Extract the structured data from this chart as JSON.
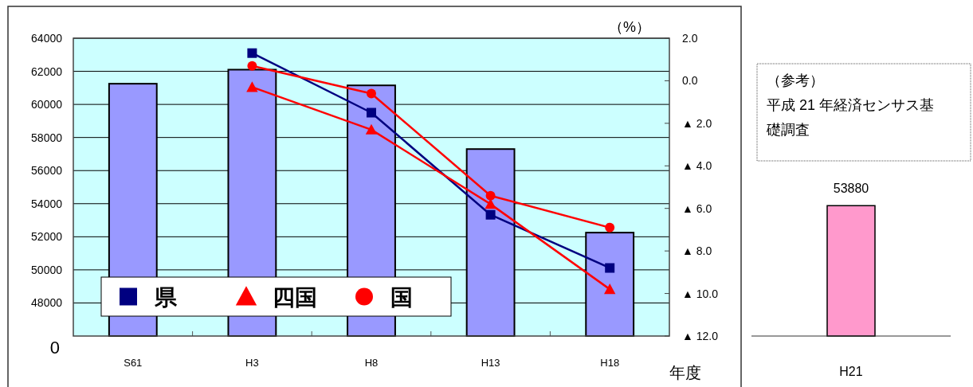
{
  "chart_data": [
    {
      "type": "bar",
      "categories": [
        "S61",
        "H3",
        "H8",
        "H13",
        "H18"
      ],
      "series": [
        {
          "type": "bar",
          "color": "#9999ff",
          "values": [
            61250,
            62100,
            61150,
            57300,
            52250
          ]
        },
        {
          "name": "県",
          "type": "line",
          "axis": "y2",
          "marker": "square",
          "color": "#000080",
          "values": [
            null,
            1.3,
            -1.5,
            -6.3,
            -8.8
          ]
        },
        {
          "name": "四国",
          "type": "line",
          "axis": "y2",
          "marker": "triangle",
          "color": "#ff0000",
          "values": [
            null,
            -0.3,
            -2.3,
            -5.8,
            -9.8
          ]
        },
        {
          "name": "国",
          "type": "line",
          "axis": "y2",
          "marker": "circle",
          "color": "#ff0000",
          "values": [
            null,
            0.7,
            -0.6,
            -5.4,
            -6.9
          ]
        }
      ],
      "ylim": [
        46000,
        64000
      ],
      "annotations": [
        "0"
      ],
      "yticks": [
        48000,
        50000,
        52000,
        54000,
        56000,
        58000,
        60000,
        62000,
        64000
      ],
      "y2lim": [
        -12,
        2
      ],
      "y2ticks": [
        {
          "value": -12,
          "label": "▲ 12.0"
        },
        {
          "value": -10,
          "label": "▲ 10.0"
        },
        {
          "value": -8,
          "label": "▲ 8.0"
        },
        {
          "value": -6,
          "label": "▲ 6.0"
        },
        {
          "value": -4,
          "label": "▲ 4.0"
        },
        {
          "value": -2,
          "label": "▲ 2.0"
        },
        {
          "value": 0,
          "label": "0.0"
        },
        {
          "value": 2,
          "label": "2.0"
        }
      ],
      "y2label": "（%）",
      "xlabel": "年度",
      "grid": "y",
      "legend": "bottom left"
    },
    {
      "type": "bar",
      "title": "（参考）",
      "subtitle": "平成 21 年経済センサス基礎調査",
      "categories": [
        "H21"
      ],
      "values": [
        53880
      ],
      "color": "#ff99cc",
      "data_labels": true,
      "ylim": [
        46000,
        64000
      ],
      "tick_labels": "x"
    }
  ]
}
